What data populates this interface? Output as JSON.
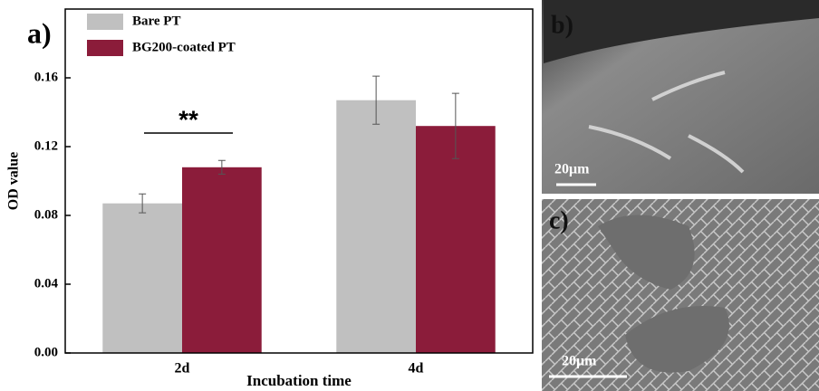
{
  "chart_data": {
    "type": "bar",
    "panel_label": "a)",
    "x_label": "Incubation time",
    "y_label": "OD value",
    "categories": [
      "2d",
      "4d"
    ],
    "series": [
      {
        "name": "Bare PT",
        "color": "#c0c0c0",
        "values": [
          0.087,
          0.147
        ],
        "errors": [
          0.0055,
          0.014
        ]
      },
      {
        "name": "BG200-coated PT",
        "color": "#8b1c3a",
        "values": [
          0.108,
          0.132
        ],
        "errors": [
          0.004,
          0.019
        ]
      }
    ],
    "ylim": [
      0,
      0.2
    ],
    "yticks": [
      {
        "value": 0,
        "label": "0.00"
      },
      {
        "value": 0.04,
        "label": "0.04"
      },
      {
        "value": 0.08,
        "label": "0.08"
      },
      {
        "value": 0.12,
        "label": "0.12"
      },
      {
        "value": 0.16,
        "label": "0.16"
      }
    ],
    "annotation": "**",
    "legend": "upper left"
  },
  "images": [
    {
      "label": "b)",
      "scale_bar": "20μm"
    },
    {
      "label": "c)",
      "scale_bar": "20μm"
    }
  ]
}
